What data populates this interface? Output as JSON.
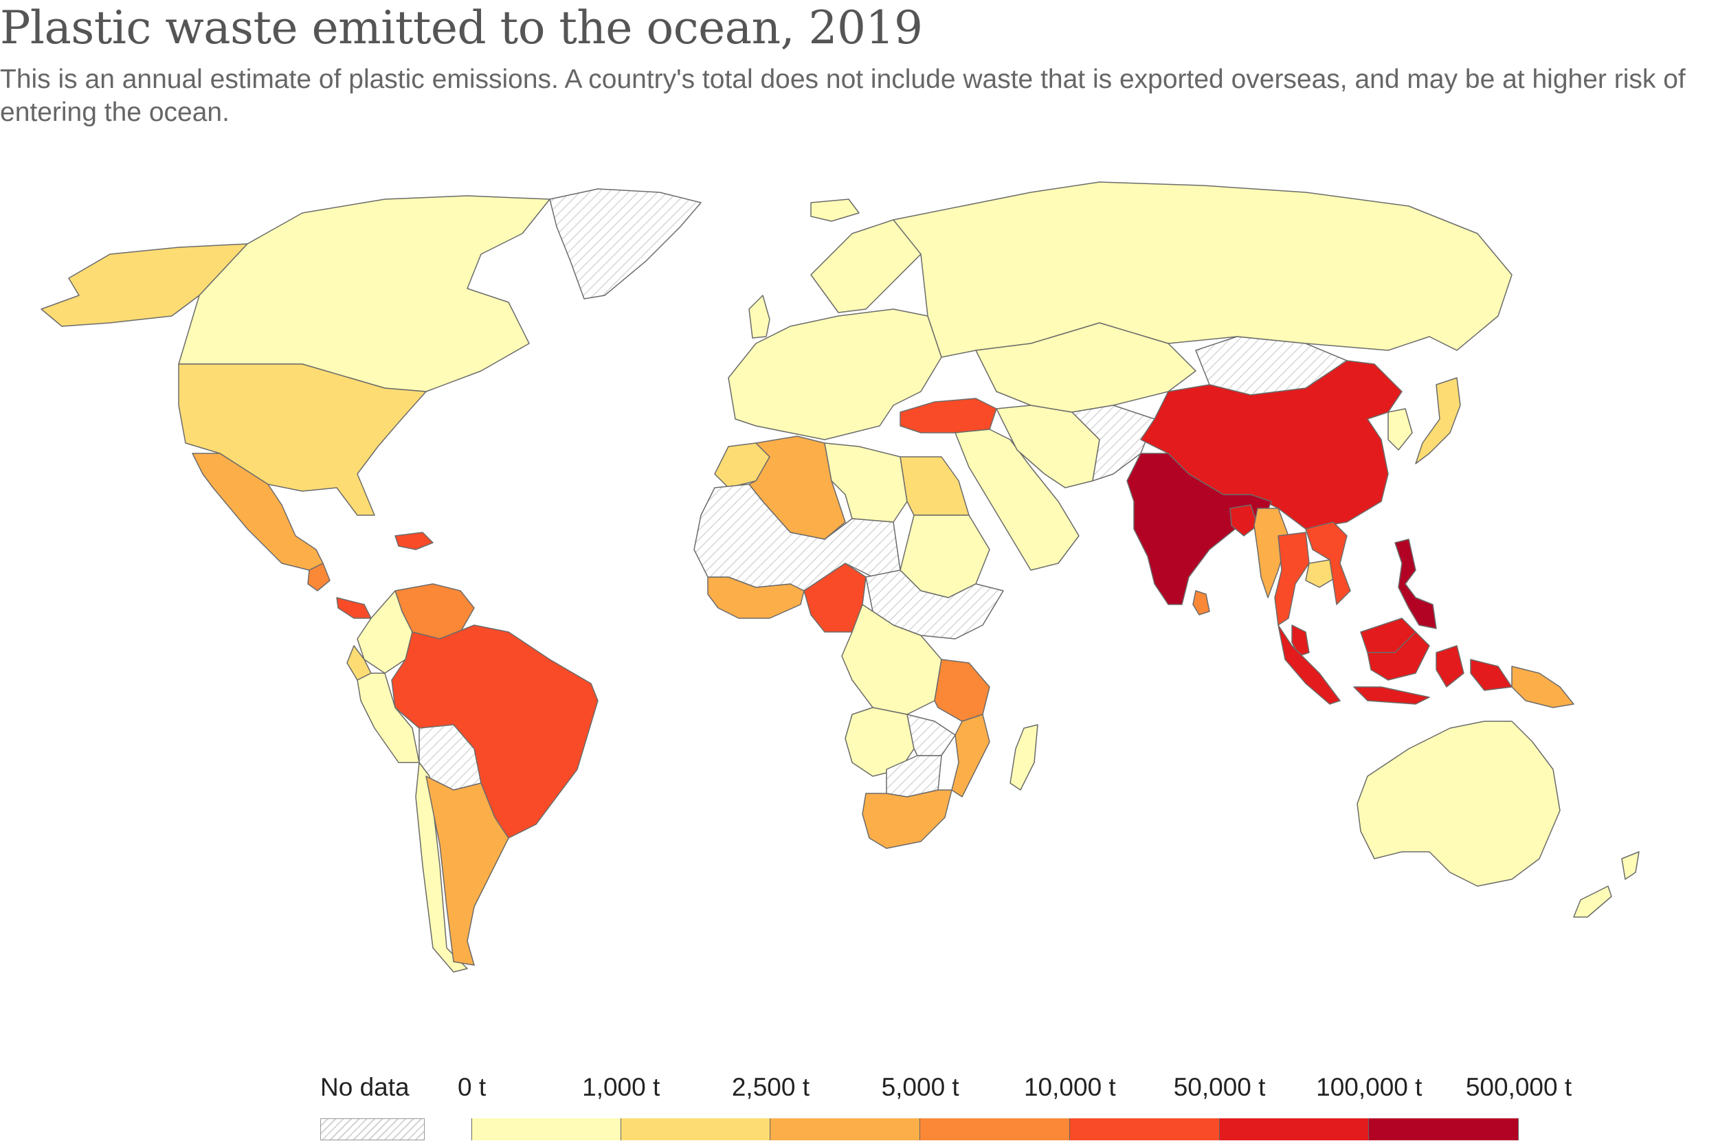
{
  "header": {
    "title": "Plastic waste emitted to the ocean, 2019",
    "subtitle": "This is an annual estimate of plastic emissions. A country's total does not include waste that is exported overseas, and may be at higher risk of entering the ocean."
  },
  "legend": {
    "no_data_label": "No data",
    "no_data_color": "#e0e0e0",
    "stops": [
      "0 t",
      "1,000 t",
      "2,500 t",
      "5,000 t",
      "10,000 t",
      "50,000 t",
      "100,000 t",
      "500,000 t"
    ],
    "colors": [
      "#fefcb6",
      "#fddc73",
      "#fcae49",
      "#fb8836",
      "#f94b27",
      "#e31b1c",
      "#b30325"
    ]
  },
  "map_data": {
    "type": "choropleth",
    "regions": [
      {
        "id": "india",
        "bin": 6
      },
      {
        "id": "philippines",
        "bin": 6
      },
      {
        "id": "china",
        "bin": 5
      },
      {
        "id": "indonesia",
        "bin": 5
      },
      {
        "id": "vietnam",
        "bin": 4
      },
      {
        "id": "malaysia",
        "bin": 5
      },
      {
        "id": "bangladesh",
        "bin": 5
      },
      {
        "id": "thailand",
        "bin": 4
      },
      {
        "id": "myanmar",
        "bin": 2
      },
      {
        "id": "sri-lanka",
        "bin": 3
      },
      {
        "id": "brazil",
        "bin": 4
      },
      {
        "id": "nigeria",
        "bin": 4
      },
      {
        "id": "turkey",
        "bin": 4
      },
      {
        "id": "venezuela",
        "bin": 3
      },
      {
        "id": "tanzania",
        "bin": 3
      },
      {
        "id": "mozambique",
        "bin": 2
      },
      {
        "id": "argentina",
        "bin": 2
      },
      {
        "id": "mexico",
        "bin": 2
      },
      {
        "id": "south-africa",
        "bin": 2
      },
      {
        "id": "algeria",
        "bin": 2
      },
      {
        "id": "west-africa-coast",
        "bin": 2
      },
      {
        "id": "papua-new-guinea",
        "bin": 2
      },
      {
        "id": "guatemala",
        "bin": 3
      },
      {
        "id": "dominican-republic",
        "bin": 4
      },
      {
        "id": "panama",
        "bin": 4
      },
      {
        "id": "usa",
        "bin": 1
      },
      {
        "id": "alaska",
        "bin": 1
      },
      {
        "id": "egypt",
        "bin": 1
      },
      {
        "id": "japan",
        "bin": 1
      },
      {
        "id": "ecuador",
        "bin": 1
      },
      {
        "id": "cambodia",
        "bin": 1
      },
      {
        "id": "morocco",
        "bin": 1
      },
      {
        "id": "canada",
        "bin": 0
      },
      {
        "id": "russia",
        "bin": 0
      },
      {
        "id": "australia",
        "bin": 0
      },
      {
        "id": "europe",
        "bin": 0
      },
      {
        "id": "scandinavia",
        "bin": 0
      },
      {
        "id": "uk",
        "bin": 0
      },
      {
        "id": "middle-east",
        "bin": 0
      },
      {
        "id": "central-asia",
        "bin": 0
      },
      {
        "id": "iran",
        "bin": 0
      },
      {
        "id": "libya",
        "bin": 0
      },
      {
        "id": "sudan",
        "bin": 0
      },
      {
        "id": "congo",
        "bin": 0
      },
      {
        "id": "angola",
        "bin": 0
      },
      {
        "id": "madagascar",
        "bin": 0
      },
      {
        "id": "colombia",
        "bin": 0
      },
      {
        "id": "peru",
        "bin": 0
      },
      {
        "id": "chile",
        "bin": 0
      },
      {
        "id": "new-zealand",
        "bin": 0
      },
      {
        "id": "korea",
        "bin": 0
      },
      {
        "id": "iceland",
        "bin": 0
      },
      {
        "id": "greenland",
        "bin": null
      },
      {
        "id": "mongolia",
        "bin": null
      },
      {
        "id": "bolivia",
        "bin": null
      },
      {
        "id": "sahel",
        "bin": null
      },
      {
        "id": "central-africa",
        "bin": null
      },
      {
        "id": "afghanistan",
        "bin": null
      },
      {
        "id": "zambia",
        "bin": null
      },
      {
        "id": "botswana",
        "bin": null
      }
    ]
  }
}
